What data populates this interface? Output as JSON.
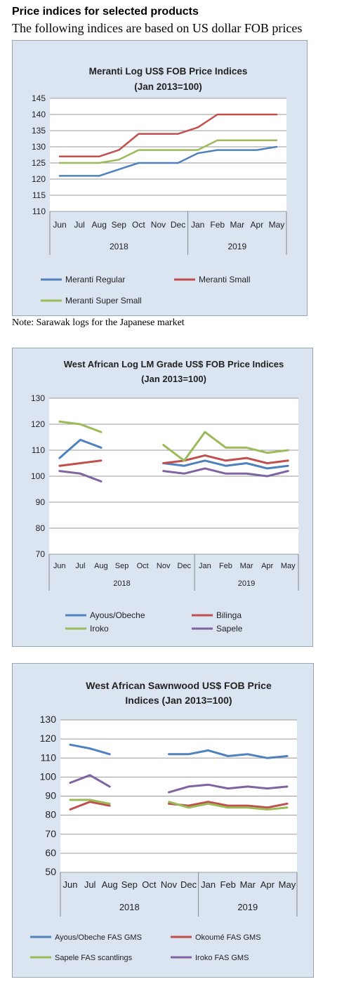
{
  "page": {
    "heading": "Price indices for selected products",
    "subheading": "The following indices are based on US dollar FOB prices",
    "note": "Note: Sarawak logs for the Japanese market"
  },
  "chart_data": [
    {
      "type": "line",
      "title": "Meranti Log US$ FOB Price Indices",
      "subtitle": "(Jan 2013=100)",
      "categories": [
        "Jun",
        "Jul",
        "Aug",
        "Sep",
        "Oct",
        "Nov",
        "Dec",
        "Jan",
        "Feb",
        "Mar",
        "Apr",
        "May"
      ],
      "groups": [
        {
          "label": "2018",
          "span": 7
        },
        {
          "label": "2019",
          "span": 5
        }
      ],
      "ylim": [
        110,
        145
      ],
      "yticks": [
        110,
        115,
        120,
        125,
        130,
        135,
        140,
        145
      ],
      "grid": true,
      "legend_position": "bottom",
      "series": [
        {
          "name": "Meranti Regular",
          "color": "#4f81bd",
          "values": [
            121,
            121,
            121,
            123,
            125,
            125,
            125,
            128,
            129,
            129,
            129,
            130
          ]
        },
        {
          "name": "Meranti Small",
          "color": "#c0504d",
          "values": [
            127,
            127,
            127,
            129,
            134,
            134,
            134,
            136,
            140,
            140,
            140,
            140
          ]
        },
        {
          "name": "Meranti Super Small",
          "color": "#9bbb59",
          "values": [
            125,
            125,
            125,
            126,
            129,
            129,
            129,
            129,
            132,
            132,
            132,
            132
          ]
        }
      ]
    },
    {
      "type": "line",
      "title": "West African Log LM Grade US$ FOB Price Indices",
      "subtitle": "(Jan 2013=100)",
      "categories": [
        "Jun",
        "Jul",
        "Aug",
        "Sep",
        "Oct",
        "Nov",
        "Dec",
        "Jan",
        "Feb",
        "Mar",
        "Apr",
        "May"
      ],
      "groups": [
        {
          "label": "2018",
          "span": 7
        },
        {
          "label": "2019",
          "span": 5
        }
      ],
      "ylim": [
        70,
        130
      ],
      "yticks": [
        70,
        80,
        90,
        100,
        110,
        120,
        130
      ],
      "grid": true,
      "legend_position": "bottom",
      "series": [
        {
          "name": "Ayous/Obeche",
          "color": "#4f81bd",
          "values": [
            107,
            114,
            111,
            null,
            null,
            105,
            104,
            106,
            104,
            105,
            103,
            104
          ]
        },
        {
          "name": "Bilinga",
          "color": "#c0504d",
          "values": [
            104,
            105,
            106,
            null,
            null,
            105,
            106,
            108,
            106,
            107,
            105,
            106
          ]
        },
        {
          "name": "Iroko",
          "color": "#9bbb59",
          "values": [
            121,
            120,
            117,
            null,
            null,
            112,
            106,
            117,
            111,
            111,
            109,
            110
          ]
        },
        {
          "name": "Sapele",
          "color": "#8064a2",
          "values": [
            102,
            101,
            98,
            null,
            null,
            102,
            101,
            103,
            101,
            101,
            100,
            102
          ]
        }
      ]
    },
    {
      "type": "line",
      "title": "West African Sawnwood US$ FOB Price",
      "subtitle": "Indices (Jan 2013=100)",
      "categories": [
        "Jun",
        "Jul",
        "Aug",
        "Sep",
        "Oct",
        "Nov",
        "Dec",
        "Jan",
        "Feb",
        "Mar",
        "Apr",
        "May"
      ],
      "groups": [
        {
          "label": "2018",
          "span": 7
        },
        {
          "label": "2019",
          "span": 5
        }
      ],
      "ylim": [
        50,
        130
      ],
      "yticks": [
        50,
        60,
        70,
        80,
        90,
        100,
        110,
        120,
        130
      ],
      "grid": true,
      "legend_position": "bottom",
      "series": [
        {
          "name": "Ayous/Obeche  FAS GMS",
          "color": "#4f81bd",
          "values": [
            117,
            115,
            112,
            null,
            null,
            112,
            112,
            114,
            111,
            112,
            110,
            111
          ]
        },
        {
          "name": "Okoumé  FAS GMS",
          "color": "#c0504d",
          "values": [
            83,
            87,
            85,
            null,
            null,
            86,
            85,
            87,
            85,
            85,
            84,
            86
          ]
        },
        {
          "name": "Sapele FAS scantlings",
          "color": "#9bbb59",
          "values": [
            88,
            88,
            86,
            null,
            null,
            87,
            84,
            86,
            84,
            84,
            83,
            84
          ]
        },
        {
          "name": "Iroko FAS GMS",
          "color": "#8064a2",
          "values": [
            97,
            101,
            95,
            null,
            null,
            92,
            95,
            96,
            94,
            95,
            94,
            95
          ]
        }
      ]
    }
  ]
}
